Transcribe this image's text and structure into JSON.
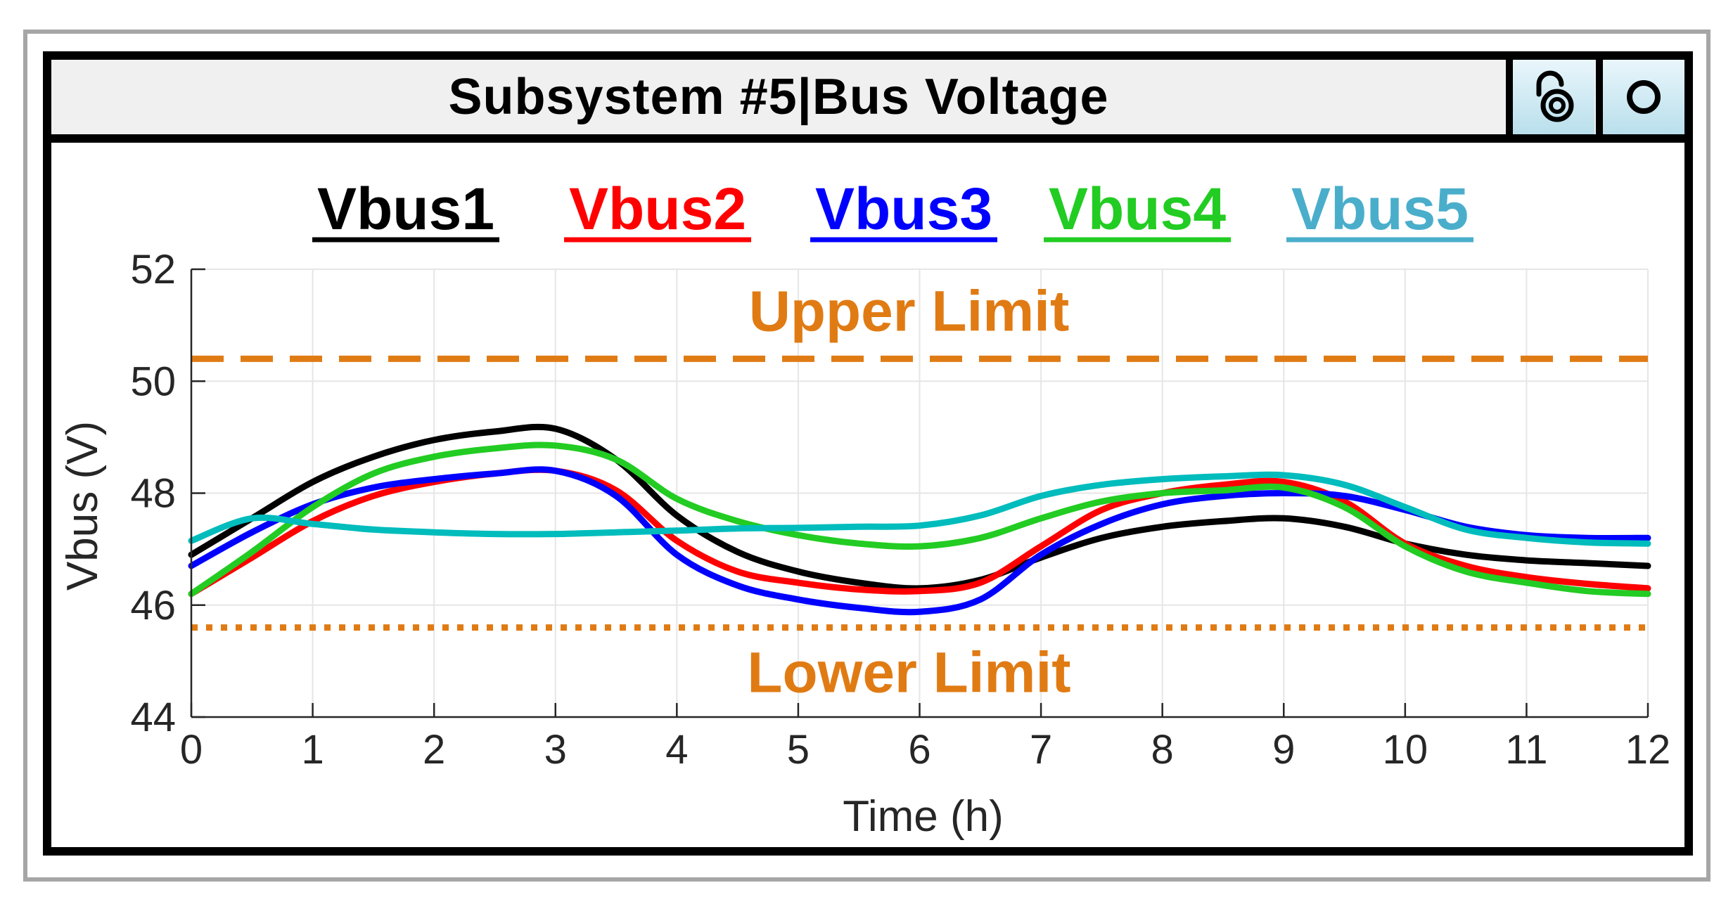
{
  "window": {
    "title": "Subsystem #5|Bus Voltage",
    "buttons": [
      {
        "icon": "lock-open-icon"
      },
      {
        "icon": "circle-icon"
      }
    ]
  },
  "chart_data": {
    "type": "line",
    "title": "",
    "xlabel": "Time (h)",
    "ylabel": "Vbus (V)",
    "xlim": [
      0,
      12
    ],
    "ylim": [
      44,
      52
    ],
    "xticks": [
      0,
      1,
      2,
      3,
      4,
      5,
      6,
      7,
      8,
      9,
      10,
      11,
      12
    ],
    "yticks": [
      44,
      46,
      48,
      50,
      52
    ],
    "grid": true,
    "legend": "top",
    "x": [
      0,
      0.5,
      1,
      1.5,
      2,
      2.5,
      3,
      3.5,
      4,
      4.5,
      5,
      5.5,
      6,
      6.5,
      7,
      7.5,
      8,
      8.5,
      9,
      9.5,
      10,
      10.5,
      11,
      11.5,
      12
    ],
    "series": [
      {
        "name": "Vbus1",
        "color": "#000000",
        "values": [
          46.9,
          47.55,
          48.2,
          48.65,
          48.95,
          49.1,
          49.15,
          48.6,
          47.6,
          46.95,
          46.6,
          46.4,
          46.3,
          46.45,
          46.85,
          47.2,
          47.4,
          47.5,
          47.55,
          47.4,
          47.1,
          46.9,
          46.8,
          46.75,
          46.7
        ]
      },
      {
        "name": "Vbus2",
        "color": "#ff0000",
        "values": [
          46.2,
          46.85,
          47.5,
          47.95,
          48.2,
          48.35,
          48.4,
          48.05,
          47.15,
          46.6,
          46.4,
          46.28,
          46.25,
          46.4,
          47.05,
          47.7,
          48.0,
          48.15,
          48.2,
          47.85,
          47.1,
          46.7,
          46.5,
          46.38,
          46.3
        ]
      },
      {
        "name": "Vbus3",
        "color": "#0000ff",
        "values": [
          46.7,
          47.3,
          47.8,
          48.1,
          48.25,
          48.35,
          48.4,
          47.95,
          46.9,
          46.35,
          46.1,
          45.95,
          45.88,
          46.1,
          46.9,
          47.45,
          47.8,
          47.95,
          48.0,
          47.95,
          47.7,
          47.4,
          47.25,
          47.2,
          47.2
        ]
      },
      {
        "name": "Vbus4",
        "color": "#22cc22",
        "values": [
          46.2,
          46.95,
          47.75,
          48.35,
          48.65,
          48.8,
          48.85,
          48.6,
          47.9,
          47.5,
          47.25,
          47.1,
          47.05,
          47.2,
          47.55,
          47.85,
          48.0,
          48.05,
          48.1,
          47.75,
          47.05,
          46.6,
          46.4,
          46.25,
          46.2
        ]
      },
      {
        "name": "Vbus5",
        "color": "#00bcbc",
        "values": [
          47.15,
          47.55,
          47.45,
          47.35,
          47.3,
          47.27,
          47.27,
          47.3,
          47.33,
          47.37,
          47.38,
          47.4,
          47.42,
          47.6,
          47.95,
          48.15,
          48.25,
          48.3,
          48.32,
          48.15,
          47.75,
          47.35,
          47.2,
          47.12,
          47.1
        ]
      }
    ],
    "legend_colors": [
      "#000000",
      "#ff0000",
      "#0000ff",
      "#22cc22",
      "#4aaecb"
    ],
    "limits": [
      {
        "label": "Upper Limit",
        "value": 50.4,
        "style": "dashed",
        "color": "#e07b14"
      },
      {
        "label": "Lower Limit",
        "value": 45.6,
        "style": "dotted",
        "color": "#e07b14"
      }
    ]
  }
}
